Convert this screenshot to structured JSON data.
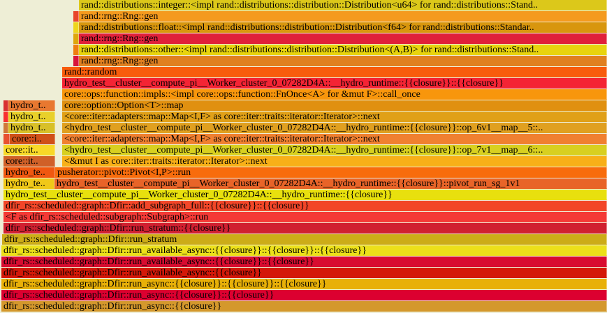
{
  "frames": {
    "r0": "rand::distributions::integer::<impl rand::distributions::distribution::Distribution<u64> for rand::distributions::Stand..",
    "r1": "rand::rng::Rng::gen",
    "r2": "rand::distributions::float::<impl rand::distributions::distribution::Distribution<f64> for rand::distributions::Standar..",
    "r3": "rand::rng::Rng::gen",
    "r4": "rand::distributions::other::<impl rand::distributions::distribution::Distribution<(A,B)> for rand::distributions::Stand..",
    "r5": "rand::rng::Rng::gen",
    "r6": "rand::random",
    "r7": "hydro_test__cluster__compute_pi__Worker_cluster_0_07282D4A::__hydro_runtime::{{closure}}::{{closure}}",
    "r8": "core::ops::function::impls::<impl core::ops::function::FnOnce<A> for &mut F>::call_once",
    "r9": "core::option::Option<T>::map",
    "r10": "<core::iter::adapters::map::Map<I,F> as core::iter::traits::iterator::Iterator>::next",
    "r11": "<hydro_test__cluster__compute_pi__Worker_cluster_0_07282D4A::__hydro_runtime::{{closure}}::op_6v1__map__5::..",
    "r12": "<core::iter::adapters::map::Map<I,F> as core::iter::traits::iterator::Iterator>::next",
    "r13": "<hydro_test__cluster__compute_pi__Worker_cluster_0_07282D4A::__hydro_runtime::{{closure}}::op_7v1__map__6::..",
    "r14": "<&mut I as core::iter::traits::iterator::Iterator>::next",
    "r15": "pusherator::pivot::Pivot<I,P>::run",
    "r16": "hydro_test__cluster__compute_pi__Worker_cluster_0_07282D4A::__hydro_runtime::{{closure}}::pivot_run_sg_1v1",
    "r17": "hydro_test__cluster__compute_pi__Worker_cluster_0_07282D4A::__hydro_runtime::{{closure}}",
    "r18": "dfir_rs::scheduled::graph::Dfir::add_subgraph_full::{{closure}}::{{closure}}",
    "r19": "<F as dfir_rs::scheduled::subgraph::Subgraph>::run",
    "r20": "dfir_rs::scheduled::graph::Dfir::run_stratum::{{closure}}",
    "r21": "dfir_rs::scheduled::graph::Dfir::run_stratum",
    "r22": "dfir_rs::scheduled::graph::Dfir::run_available_async::{{closure}}::{{closure}}::{{closure}}",
    "r23": "dfir_rs::scheduled::graph::Dfir::run_available_async::{{closure}}::{{closure}}",
    "r24": "dfir_rs::scheduled::graph::Dfir::run_available_async::{{closure}}",
    "r25": "dfir_rs::scheduled::graph::Dfir::run_async::{{closure}}::{{closure}}::{{closure}}",
    "r26": "dfir_rs::scheduled::graph::Dfir::run_async::{{closure}}::{{closure}}",
    "r27": "dfir_rs::scheduled::graph::Dfir::run_async::{{closure}}",
    "left_hydro_t": "hydro_t..",
    "left_core_i": "core::i..",
    "left_core_it": "core::it..",
    "left_hydro_te": "hydro_te.."
  }
}
